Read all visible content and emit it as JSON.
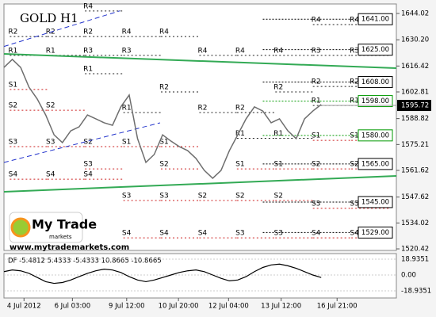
{
  "chart_data": {
    "type": "line",
    "title": "GOLD H1",
    "color": "#6e6e6e",
    "values": [
      1615.7,
      1619.9,
      1615.7,
      1605.3,
      1599,
      1590.7,
      1580.3,
      1576.2,
      1582.4,
      1584.5,
      1590.7,
      1588.7,
      1586.6,
      1585.3,
      1595,
      1601.2,
      1578.3,
      1565.8,
      1570,
      1580.3,
      1577,
      1574.1,
      1572,
      1567.9,
      1561.6,
      1557.5,
      1561.6,
      1572,
      1580.3,
      1588.7,
      1595,
      1592.8,
      1586.6,
      1588.7,
      1582.4,
      1578.3,
      1588.7,
      1592.8,
      1596.2
    ],
    "xlim": [
      0,
      47
    ],
    "xticks": [
      {
        "value": 2.4,
        "label": "4 Jul 2012"
      },
      {
        "value": 8.2,
        "label": "6 Jul 03:00"
      },
      {
        "value": 14.7,
        "label": "9 Jul 12:00"
      },
      {
        "value": 20.9,
        "label": "10 Jul 20:00"
      },
      {
        "value": 26.9,
        "label": "12 Jul 04:00"
      },
      {
        "value": 33.2,
        "label": "13 Jul 12:00"
      },
      {
        "value": 39.9,
        "label": "16 Jul 21:00"
      }
    ],
    "ylim": [
      1519.6,
      1649.0
    ],
    "yticks": [
      1644.02,
      {
        "value": 1630.2,
        "label": "1630.20"
      },
      1616.42,
      1602.81,
      1588.82,
      1575.21,
      1561.62,
      1547.62,
      1534.02,
      1520.42
    ],
    "current_price": 1595.72,
    "levels": [
      {
        "value": 1641,
        "label": "1641.00",
        "color": "#000000"
      },
      {
        "value": 1625,
        "label": "1625.00",
        "color": "#000000"
      },
      {
        "value": 1608,
        "label": "1608.00",
        "color": "#000000"
      },
      {
        "value": 1598,
        "label": "1598.00",
        "color": "#009900"
      },
      {
        "value": 1580,
        "label": "1580.00",
        "color": "#009900"
      },
      {
        "value": 1565,
        "label": "1565.00",
        "color": "#000000"
      },
      {
        "value": 1545,
        "label": "1545.00",
        "color": "#000000"
      },
      {
        "value": 1529,
        "label": "1529.00",
        "color": "#000000"
      }
    ],
    "trendlines": [
      {
        "x": [
          0,
          47
        ],
        "y": [
          1622.8,
          1615.3
        ],
        "color": "#33aa55",
        "dash": false
      },
      {
        "x": [
          0,
          47
        ],
        "y": [
          1550.4,
          1558.7
        ],
        "color": "#33aa55",
        "dash": false
      },
      {
        "x": [
          0,
          18.7
        ],
        "y": [
          1565.8,
          1586.6
        ],
        "color": "#2233cc",
        "dash": true
      },
      {
        "x": [
          0,
          13.9
        ],
        "y": [
          1626.7,
          1645.4
        ],
        "color": "#2233cc",
        "dash": true
      }
    ],
    "pivots": [
      {
        "x": 0.7,
        "levels": [
          {
            "label": "R2",
            "y": 1631.9
          },
          {
            "label": "R1",
            "y": 1622
          },
          {
            "label": "S1",
            "y": 1604.1
          },
          {
            "label": "S2",
            "y": 1593.2
          },
          {
            "label": "S3",
            "y": 1574.1
          },
          {
            "label": "S4",
            "y": 1557
          }
        ]
      },
      {
        "x": 5.2,
        "levels": [
          {
            "label": "R2",
            "y": 1631.9
          },
          {
            "label": "R1",
            "y": 1622
          },
          {
            "label": "S2",
            "y": 1593.2
          },
          {
            "label": "S3",
            "y": 1574.1
          },
          {
            "label": "S4",
            "y": 1557
          }
        ]
      },
      {
        "x": 9.7,
        "levels": [
          {
            "label": "R4",
            "y": 1645.3
          },
          {
            "label": "R2",
            "y": 1631.9
          },
          {
            "label": "R3",
            "y": 1622
          },
          {
            "label": "R1",
            "y": 1612.4
          },
          {
            "label": "S2",
            "y": 1574.1
          },
          {
            "label": "S3",
            "y": 1562.4
          },
          {
            "label": "S4",
            "y": 1557
          }
        ]
      },
      {
        "x": 14.3,
        "levels": [
          {
            "label": "R4",
            "y": 1631.9
          },
          {
            "label": "R3",
            "y": 1622
          },
          {
            "label": "R1",
            "y": 1592
          },
          {
            "label": "S1",
            "y": 1574.1
          },
          {
            "label": "S3",
            "y": 1545.8
          },
          {
            "label": "S4",
            "y": 1526.2
          }
        ]
      },
      {
        "x": 18.8,
        "levels": [
          {
            "label": "R4",
            "y": 1631.9
          },
          {
            "label": "R2",
            "y": 1602.8
          },
          {
            "label": "S1",
            "y": 1574.1
          },
          {
            "label": "S2",
            "y": 1562.4
          },
          {
            "label": "S3",
            "y": 1545.8
          },
          {
            "label": "S4",
            "y": 1526.2
          }
        ]
      },
      {
        "x": 23.4,
        "levels": [
          {
            "label": "R4",
            "y": 1622
          },
          {
            "label": "R2",
            "y": 1592
          },
          {
            "label": "S2",
            "y": 1545.8
          },
          {
            "label": "S4",
            "y": 1526.2
          }
        ]
      },
      {
        "x": 27.9,
        "levels": [
          {
            "label": "R4",
            "y": 1622
          },
          {
            "label": "R2",
            "y": 1592
          },
          {
            "label": "R1",
            "y": 1578.5
          },
          {
            "label": "S1",
            "y": 1562.4
          },
          {
            "label": "S2",
            "y": 1545.8
          },
          {
            "label": "S3",
            "y": 1526.2
          }
        ]
      },
      {
        "x": 32.5,
        "levels": [
          {
            "label": "R4",
            "y": 1622
          },
          {
            "label": "R2",
            "y": 1602.8
          },
          {
            "label": "R1",
            "y": 1578.5
          },
          {
            "label": "S1",
            "y": 1562.4
          },
          {
            "label": "S2",
            "y": 1545.8
          },
          {
            "label": "S3",
            "y": 1526.2
          }
        ]
      },
      {
        "x": 37.0,
        "levels": [
          {
            "label": "R4",
            "y": 1638.2
          },
          {
            "label": "R3",
            "y": 1622
          },
          {
            "label": "R2",
            "y": 1605.7
          },
          {
            "label": "R1",
            "y": 1595.7
          },
          {
            "label": "S1",
            "y": 1577.4
          },
          {
            "label": "S2",
            "y": 1562.4
          },
          {
            "label": "S3",
            "y": 1541.7
          },
          {
            "label": "S4",
            "y": 1526.2
          }
        ]
      },
      {
        "x": 41.6,
        "levels": [
          {
            "label": "R4",
            "y": 1638.2
          },
          {
            "label": "R3",
            "y": 1622
          },
          {
            "label": "R2",
            "y": 1605.7
          },
          {
            "label": "R1",
            "y": 1595.7
          },
          {
            "label": "S1",
            "y": 1577.4
          },
          {
            "label": "S2",
            "y": 1562.4
          },
          {
            "label": "S3",
            "y": 1541.7
          },
          {
            "label": "S4",
            "y": 1526.2
          }
        ]
      }
    ],
    "logo": {
      "brand": "My Trade",
      "sub": "markets",
      "url": "www.mytrademarkets.com"
    },
    "indicator": {
      "label": "DF -5.4812 5.4333 -5.4333 10.8665 -10.8665",
      "color": "#000000",
      "ylim": [
        -27.46,
        25.56
      ],
      "yticks": [
        18.9351,
        {
          "value": 0,
          "label": "0.00"
        },
        -18.9351
      ],
      "values": [
        4,
        6,
        5,
        2,
        -3,
        -8,
        -10,
        -9,
        -6,
        -2,
        2,
        5,
        7,
        6,
        3,
        -2,
        -6,
        -8,
        -6,
        -3,
        0,
        3,
        5,
        6,
        4,
        0,
        -4,
        -7,
        -6,
        -2,
        4,
        9,
        12,
        13,
        11,
        8,
        4,
        0,
        -3
      ]
    }
  }
}
